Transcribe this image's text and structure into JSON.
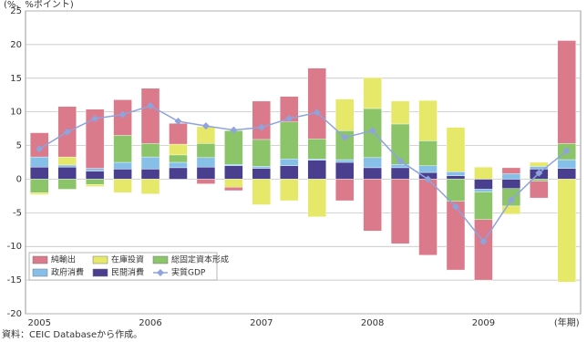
{
  "chart_data": {
    "type": "bar",
    "y_label": "(%、%ポイント)",
    "source": "資料：CEIC Databaseから作成。",
    "categories": [
      "2005",
      null,
      null,
      null,
      "2006",
      null,
      null,
      null,
      "2007",
      null,
      null,
      null,
      "2008",
      null,
      null,
      null,
      "2009",
      null,
      null,
      "(年期)"
    ],
    "series": [
      {
        "name": "純輸出",
        "color": "#da7a8a",
        "values": [
          3.6,
          7.5,
          8.8,
          5.3,
          8.2,
          3.1,
          -0.7,
          -0.5,
          5.7,
          3.8,
          10.5,
          -3.2,
          -7.7,
          -9.6,
          -11.3,
          -10.2,
          -9.0,
          0.9,
          -2.5,
          15.3
        ]
      },
      {
        "name": "在庫投資",
        "color": "#e6e86a",
        "values": [
          -0.3,
          1.2,
          -0.3,
          -2.0,
          -2.2,
          1.6,
          2.5,
          -1.2,
          -3.8,
          -3.2,
          -5.6,
          4.7,
          4.6,
          3.4,
          6.0,
          6.6,
          1.8,
          -1.2,
          0.6,
          -15.3
        ]
      },
      {
        "name": "総固定資本形成",
        "color": "#8cc46a",
        "values": [
          -2.0,
          -1.5,
          -0.8,
          4.0,
          2.0,
          1.1,
          2.1,
          5.0,
          4.0,
          5.5,
          3.0,
          4.3,
          7.3,
          6.0,
          3.7,
          -3.3,
          -4.1,
          -2.6,
          -0.3,
          2.4
        ]
      },
      {
        "name": "政府消費",
        "color": "#86c0e8",
        "values": [
          1.5,
          0.3,
          0.4,
          1.0,
          1.8,
          0.8,
          1.4,
          0.2,
          0.3,
          1.0,
          0.2,
          0.4,
          1.5,
          0.5,
          1.0,
          0.6,
          -0.4,
          0.8,
          0.4,
          1.3
        ]
      },
      {
        "name": "民間消費",
        "color": "#4a3f8f",
        "values": [
          1.8,
          1.8,
          1.2,
          1.5,
          1.5,
          1.7,
          1.8,
          2.0,
          1.6,
          2.0,
          2.8,
          2.5,
          1.7,
          1.7,
          1.0,
          0.5,
          -1.5,
          -1.4,
          1.5,
          1.6
        ]
      },
      {
        "name": "実質GDP",
        "color": "#8fa3dc",
        "type": "line",
        "values": [
          4.5,
          7.0,
          9.0,
          9.6,
          10.9,
          8.6,
          7.9,
          7.3,
          7.7,
          9.0,
          9.9,
          6.2,
          7.2,
          2.7,
          0.0,
          -4.1,
          -9.3,
          -3.1,
          0.9,
          4.2
        ]
      }
    ],
    "ylim": [
      -20,
      25
    ],
    "yticks": [
      -20,
      -15,
      -10,
      -5,
      0,
      5,
      10,
      15,
      20,
      25
    ],
    "grid": true
  }
}
